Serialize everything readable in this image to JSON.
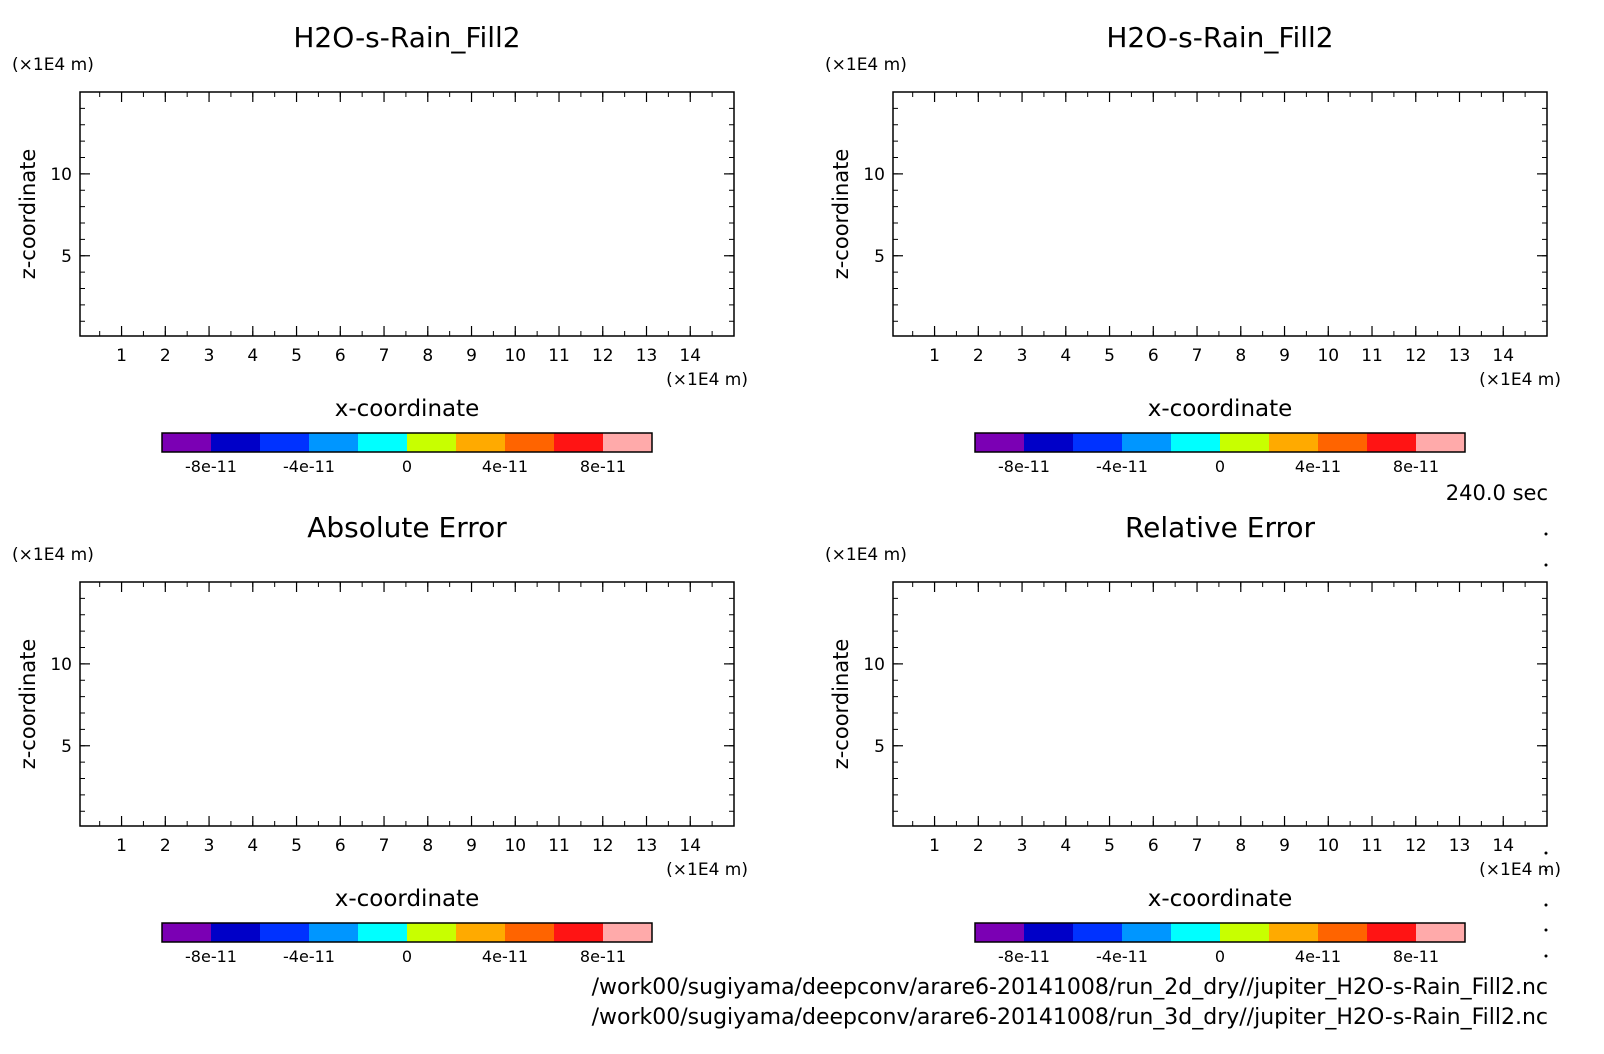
{
  "chart_data": [
    {
      "type": "contour",
      "title": "H2O-s-Rain_Fill2",
      "xlabel": "x-coordinate",
      "ylabel": "z-coordinate",
      "x_unit": "(×1E4 m)",
      "y_unit": "(×1E4 m)",
      "xlim": [
        0.05,
        15.0
      ],
      "ylim": [
        0.1,
        15.0
      ],
      "x_ticks": [
        1,
        2,
        3,
        4,
        5,
        6,
        7,
        8,
        9,
        10,
        11,
        12,
        13,
        14
      ],
      "y_ticks": [
        5,
        10
      ],
      "colorbar": {
        "colors": [
          "#7b00b4",
          "#0000c8",
          "#0032ff",
          "#0096ff",
          "#00ffff",
          "#c8ff00",
          "#ffaa00",
          "#ff6400",
          "#ff1414",
          "#ffaaaa"
        ],
        "labels": [
          "-8e-11",
          "-4e-11",
          "0",
          "4e-11",
          "8e-11"
        ],
        "label_values": [
          -8e-11,
          -4e-11,
          0,
          4e-11,
          8e-11
        ],
        "range": [
          -1e-10,
          1e-10
        ]
      }
    },
    {
      "type": "contour",
      "title": "H2O-s-Rain_Fill2",
      "xlabel": "x-coordinate",
      "ylabel": "z-coordinate",
      "x_unit": "(×1E4 m)",
      "y_unit": "(×1E4 m)",
      "xlim": [
        0.05,
        15.0
      ],
      "ylim": [
        0.1,
        15.0
      ],
      "x_ticks": [
        1,
        2,
        3,
        4,
        5,
        6,
        7,
        8,
        9,
        10,
        11,
        12,
        13,
        14
      ],
      "y_ticks": [
        5,
        10
      ],
      "colorbar": {
        "colors": [
          "#7b00b4",
          "#0000c8",
          "#0032ff",
          "#0096ff",
          "#00ffff",
          "#c8ff00",
          "#ffaa00",
          "#ff6400",
          "#ff1414",
          "#ffaaaa"
        ],
        "labels": [
          "-8e-11",
          "-4e-11",
          "0",
          "4e-11",
          "8e-11"
        ],
        "label_values": [
          -8e-11,
          -4e-11,
          0,
          4e-11,
          8e-11
        ],
        "range": [
          -1e-10,
          1e-10
        ]
      }
    },
    {
      "type": "contour",
      "title": "Absolute Error",
      "xlabel": "x-coordinate",
      "ylabel": "z-coordinate",
      "x_unit": "(×1E4 m)",
      "y_unit": "(×1E4 m)",
      "xlim": [
        0.05,
        15.0
      ],
      "ylim": [
        0.1,
        15.0
      ],
      "x_ticks": [
        1,
        2,
        3,
        4,
        5,
        6,
        7,
        8,
        9,
        10,
        11,
        12,
        13,
        14
      ],
      "y_ticks": [
        5,
        10
      ],
      "colorbar": {
        "colors": [
          "#7b00b4",
          "#0000c8",
          "#0032ff",
          "#0096ff",
          "#00ffff",
          "#c8ff00",
          "#ffaa00",
          "#ff6400",
          "#ff1414",
          "#ffaaaa"
        ],
        "labels": [
          "-8e-11",
          "-4e-11",
          "0",
          "4e-11",
          "8e-11"
        ],
        "label_values": [
          -8e-11,
          -4e-11,
          0,
          4e-11,
          8e-11
        ],
        "range": [
          -1e-10,
          1e-10
        ]
      }
    },
    {
      "type": "contour",
      "title": "Relative Error",
      "xlabel": "x-coordinate",
      "ylabel": "z-coordinate",
      "x_unit": "(×1E4 m)",
      "y_unit": "(×1E4 m)",
      "xlim": [
        0.05,
        15.0
      ],
      "ylim": [
        0.1,
        15.0
      ],
      "x_ticks": [
        1,
        2,
        3,
        4,
        5,
        6,
        7,
        8,
        9,
        10,
        11,
        12,
        13,
        14
      ],
      "y_ticks": [
        5,
        10
      ],
      "colorbar": {
        "colors": [
          "#7b00b4",
          "#0000c8",
          "#0032ff",
          "#0096ff",
          "#00ffff",
          "#c8ff00",
          "#ffaa00",
          "#ff6400",
          "#ff1414",
          "#ffaaaa"
        ],
        "labels": [
          "-8e-11",
          "-4e-11",
          "0",
          "4e-11",
          "8e-11"
        ],
        "label_values": [
          -8e-11,
          -4e-11,
          0,
          4e-11,
          8e-11
        ],
        "range": [
          -1e-10,
          1e-10
        ]
      }
    }
  ],
  "time_label": "240.0 sec",
  "file_paths": [
    "/work00/sugiyama/deepconv/arare6-20141008/run_2d_dry//jupiter_H2O-s-Rain_Fill2.nc",
    "/work00/sugiyama/deepconv/arare6-20141008/run_3d_dry//jupiter_H2O-s-Rain_Fill2.nc"
  ]
}
